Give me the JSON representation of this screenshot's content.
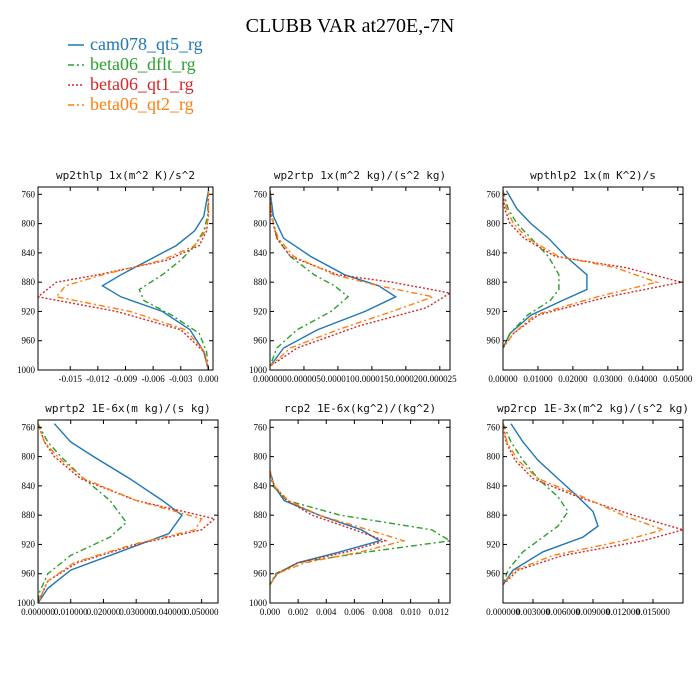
{
  "title": "CLUBB VAR at270E,-7N",
  "legend": [
    {
      "name": "cam078_qt5_rg",
      "color": "#1f77b4",
      "dash": "solid"
    },
    {
      "name": "beta06_dflt_rg",
      "color": "#2ca02c",
      "dash": "dashdot"
    },
    {
      "name": "beta06_qt1_rg",
      "color": "#d62728",
      "dash": "dot"
    },
    {
      "name": "beta06_qt2_rg",
      "color": "#ff7f0e",
      "dash": "dashdot"
    }
  ],
  "chart_data": [
    {
      "type": "line",
      "title": "wp2thlp  1x(m^2 K)/s^2",
      "ylim": [
        1000,
        750
      ],
      "yticks": [
        760,
        800,
        840,
        880,
        920,
        960,
        1000
      ],
      "xlim": [
        -0.0185,
        0.0005
      ],
      "xticks": [
        -0.015,
        -0.012,
        -0.009,
        -0.006,
        -0.003,
        0.0
      ],
      "xticklabels": [
        "-0.015",
        "-0.012",
        "-0.009",
        "-0.006",
        "-0.003",
        "0.000"
      ],
      "series": [
        {
          "name": "cam078_qt5_rg",
          "y": [
            755,
            790,
            810,
            830,
            850,
            870,
            885,
            900,
            920,
            945,
            975,
            1000
          ],
          "values": [
            0.0,
            -0.0005,
            -0.0015,
            -0.0035,
            -0.0065,
            -0.0095,
            -0.0115,
            -0.0095,
            -0.005,
            -0.002,
            -0.0005,
            0.0
          ]
        },
        {
          "name": "beta06_dflt_rg",
          "y": [
            755,
            790,
            810,
            830,
            850,
            870,
            890,
            905,
            925,
            950,
            975,
            1000
          ],
          "values": [
            0.0,
            -0.0001,
            -0.0005,
            -0.0015,
            -0.003,
            -0.005,
            -0.0075,
            -0.007,
            -0.004,
            -0.001,
            -0.0002,
            0.0
          ]
        },
        {
          "name": "beta06_qt1_rg",
          "y": [
            755,
            790,
            810,
            830,
            850,
            870,
            880,
            900,
            920,
            945,
            975,
            1000
          ],
          "values": [
            0.0,
            0.0,
            -0.0002,
            -0.001,
            -0.0045,
            -0.012,
            -0.0165,
            -0.0185,
            -0.01,
            -0.003,
            -0.0005,
            0.0
          ]
        },
        {
          "name": "beta06_qt2_rg",
          "y": [
            755,
            790,
            810,
            830,
            850,
            870,
            885,
            900,
            920,
            945,
            975,
            1000
          ],
          "values": [
            0.0,
            0.0,
            -0.0003,
            -0.0015,
            -0.005,
            -0.0115,
            -0.0155,
            -0.0165,
            -0.0085,
            -0.0025,
            -0.0004,
            0.0
          ]
        }
      ]
    },
    {
      "type": "line",
      "title": "wp2rtp  1x(m^2 kg)/(s^2 kg)",
      "ylim": [
        1000,
        750
      ],
      "yticks": [
        760,
        800,
        840,
        880,
        920,
        960,
        1000
      ],
      "xlim": [
        0.0,
        2.65e-05
      ],
      "xticks": [
        0.0,
        5e-06,
        1e-05,
        1.5e-05,
        2e-05,
        2.5e-05
      ],
      "xticklabels": [
        "0.000000",
        "0.000005",
        "0.000010",
        "0.000015",
        "0.000020",
        "0.000025"
      ],
      "series": [
        {
          "name": "cam078_qt5_rg",
          "y": [
            755,
            790,
            820,
            845,
            870,
            885,
            900,
            920,
            945,
            970,
            995
          ],
          "values": [
            0.0,
            5e-07,
            2e-06,
            6e-06,
            1.1e-05,
            1.6e-05,
            1.85e-05,
            1.4e-05,
            7e-06,
            2e-06,
            0.0
          ]
        },
        {
          "name": "beta06_dflt_rg",
          "y": [
            755,
            790,
            820,
            845,
            870,
            885,
            900,
            920,
            945,
            970,
            995
          ],
          "values": [
            0.0,
            3e-07,
            1e-06,
            3e-06,
            6.5e-06,
            9.5e-06,
            1.15e-05,
            9e-06,
            4e-06,
            1e-06,
            0.0
          ]
        },
        {
          "name": "beta06_qt1_rg",
          "y": [
            755,
            790,
            820,
            845,
            870,
            880,
            895,
            915,
            940,
            970,
            995
          ],
          "values": [
            0.0,
            2e-07,
            1e-06,
            3e-06,
            1e-05,
            1.8e-05,
            2.65e-05,
            2.3e-05,
            1.3e-05,
            4e-06,
            0.0
          ]
        },
        {
          "name": "beta06_qt2_rg",
          "y": [
            755,
            790,
            820,
            845,
            870,
            885,
            900,
            920,
            945,
            970,
            995
          ],
          "values": [
            0.0,
            2e-07,
            1.2e-06,
            3.5e-06,
            9.5e-06,
            1.6e-05,
            2.4e-05,
            1.8e-05,
            1e-05,
            3e-06,
            0.0
          ]
        }
      ]
    },
    {
      "type": "line",
      "title": "wpthlp2  1x(m K^2)/s",
      "ylim": [
        1000,
        750
      ],
      "yticks": [
        760,
        800,
        840,
        880,
        920,
        960
      ],
      "xlim": [
        0.0,
        0.0515
      ],
      "xticks": [
        0.0,
        0.01,
        0.02,
        0.03,
        0.04,
        0.05
      ],
      "xticklabels": [
        "0.00000",
        "0.01000",
        "0.02000",
        "0.03000",
        "0.04000",
        "0.05000"
      ],
      "series": [
        {
          "name": "cam078_qt5_rg",
          "y": [
            755,
            780,
            800,
            820,
            845,
            870,
            890,
            905,
            925,
            950,
            970
          ],
          "values": [
            0.001,
            0.004,
            0.008,
            0.013,
            0.018,
            0.024,
            0.024,
            0.017,
            0.008,
            0.002,
            0.0
          ]
        },
        {
          "name": "beta06_dflt_rg",
          "y": [
            755,
            780,
            800,
            820,
            845,
            870,
            890,
            905,
            925,
            950,
            970
          ],
          "values": [
            0.0,
            0.0015,
            0.004,
            0.008,
            0.013,
            0.016,
            0.016,
            0.0135,
            0.007,
            0.002,
            0.0
          ]
        },
        {
          "name": "beta06_qt1_rg",
          "y": [
            755,
            780,
            800,
            820,
            845,
            860,
            880,
            900,
            925,
            950,
            970
          ],
          "values": [
            0.0,
            0.0005,
            0.002,
            0.006,
            0.015,
            0.035,
            0.051,
            0.03,
            0.01,
            0.003,
            0.0
          ]
        },
        {
          "name": "beta06_qt2_rg",
          "y": [
            755,
            780,
            800,
            820,
            845,
            860,
            880,
            900,
            925,
            950,
            970
          ],
          "values": [
            0.0,
            0.001,
            0.003,
            0.007,
            0.016,
            0.032,
            0.044,
            0.027,
            0.009,
            0.003,
            0.0
          ]
        }
      ]
    },
    {
      "type": "line",
      "title": "wprtp2  1E-6x(m kg)/(s kg)",
      "ylim": [
        1000,
        750
      ],
      "yticks": [
        760,
        800,
        840,
        880,
        920,
        960,
        1000
      ],
      "xlim": [
        0.0,
        0.055
      ],
      "xticks": [
        0.0,
        0.01,
        0.02,
        0.03,
        0.04,
        0.05
      ],
      "xticklabels": [
        "0.000000",
        "0.010000",
        "0.020000",
        "0.030000",
        "0.040000",
        "0.050000"
      ],
      "series": [
        {
          "name": "cam078_qt5_rg",
          "y": [
            755,
            780,
            800,
            830,
            860,
            880,
            905,
            930,
            955,
            980,
            1000
          ],
          "values": [
            0.005,
            0.01,
            0.017,
            0.028,
            0.038,
            0.044,
            0.04,
            0.025,
            0.01,
            0.003,
            0.0
          ]
        },
        {
          "name": "beta06_dflt_rg",
          "y": [
            755,
            780,
            800,
            830,
            860,
            890,
            910,
            935,
            960,
            985,
            1000
          ],
          "values": [
            0.0,
            0.003,
            0.007,
            0.014,
            0.022,
            0.027,
            0.022,
            0.01,
            0.003,
            0.0005,
            0.0
          ]
        },
        {
          "name": "beta06_qt1_rg",
          "y": [
            755,
            780,
            800,
            830,
            860,
            885,
            900,
            920,
            945,
            970,
            1000
          ],
          "values": [
            0.0,
            0.002,
            0.005,
            0.013,
            0.03,
            0.054,
            0.05,
            0.03,
            0.012,
            0.003,
            0.0
          ]
        },
        {
          "name": "beta06_qt2_rg",
          "y": [
            755,
            780,
            800,
            830,
            860,
            885,
            900,
            920,
            945,
            970,
            1000
          ],
          "values": [
            0.0,
            0.002,
            0.006,
            0.014,
            0.03,
            0.05,
            0.048,
            0.029,
            0.011,
            0.003,
            0.0
          ]
        }
      ]
    },
    {
      "type": "line",
      "title": "rcp2  1E-6x(kg^2)/(kg^2)",
      "ylim": [
        1000,
        750
      ],
      "yticks": [
        760,
        800,
        840,
        880,
        920,
        960,
        1000
      ],
      "xlim": [
        0.0,
        0.0128
      ],
      "xticks": [
        0.0,
        0.002,
        0.004,
        0.006,
        0.008,
        0.01,
        0.012
      ],
      "xticklabels": [
        "0.000",
        "0.002",
        "0.004",
        "0.006",
        "0.008",
        "0.010",
        "0.012"
      ],
      "series": [
        {
          "name": "cam078_qt5_rg",
          "y": [
            820,
            840,
            860,
            880,
            900,
            915,
            930,
            945,
            960,
            975
          ],
          "values": [
            0.0,
            0.0003,
            0.001,
            0.0035,
            0.0065,
            0.0078,
            0.005,
            0.002,
            0.0005,
            0.0
          ]
        },
        {
          "name": "beta06_dflt_rg",
          "y": [
            820,
            840,
            860,
            880,
            900,
            915,
            930,
            945,
            960,
            975
          ],
          "values": [
            0.0,
            0.0002,
            0.0012,
            0.005,
            0.0115,
            0.0128,
            0.007,
            0.002,
            0.0004,
            0.0
          ]
        },
        {
          "name": "beta06_qt1_rg",
          "y": [
            820,
            840,
            860,
            880,
            900,
            915,
            930,
            945,
            960,
            975
          ],
          "values": [
            0.0,
            0.0003,
            0.0012,
            0.003,
            0.006,
            0.0082,
            0.0055,
            0.002,
            0.0005,
            0.0
          ]
        },
        {
          "name": "beta06_qt2_rg",
          "y": [
            820,
            840,
            860,
            880,
            900,
            915,
            930,
            945,
            960,
            975
          ],
          "values": [
            0.0,
            0.0003,
            0.0013,
            0.0035,
            0.007,
            0.0095,
            0.0065,
            0.0025,
            0.0005,
            0.0
          ]
        }
      ]
    },
    {
      "type": "line",
      "title": "wp2rcp  1E-3x(m^2 kg)/(s^2 kg)",
      "ylim": [
        1000,
        750
      ],
      "yticks": [
        760,
        800,
        840,
        880,
        920,
        960
      ],
      "xlim": [
        0.0,
        0.018
      ],
      "xticks": [
        0.0,
        0.003,
        0.006,
        0.009,
        0.012,
        0.015
      ],
      "xticklabels": [
        "0.000000",
        "0.003000",
        "0.006000",
        "0.009000",
        "0.012000",
        "0.015000"
      ],
      "series": [
        {
          "name": "cam078_qt5_rg",
          "y": [
            755,
            780,
            805,
            830,
            855,
            875,
            895,
            910,
            930,
            955,
            975
          ],
          "values": [
            0.0008,
            0.002,
            0.0035,
            0.0055,
            0.0075,
            0.009,
            0.0095,
            0.008,
            0.004,
            0.001,
            0.0
          ]
        },
        {
          "name": "beta06_dflt_rg",
          "y": [
            755,
            780,
            805,
            830,
            855,
            875,
            895,
            910,
            930,
            955,
            975
          ],
          "values": [
            0.0,
            0.0008,
            0.002,
            0.0035,
            0.0055,
            0.0065,
            0.0055,
            0.004,
            0.002,
            0.0005,
            0.0
          ]
        },
        {
          "name": "beta06_qt1_rg",
          "y": [
            755,
            780,
            805,
            830,
            855,
            880,
            900,
            915,
            935,
            955,
            975
          ],
          "values": [
            0.0,
            0.0003,
            0.0012,
            0.003,
            0.0075,
            0.013,
            0.018,
            0.014,
            0.006,
            0.0015,
            0.0
          ]
        },
        {
          "name": "beta06_qt2_rg",
          "y": [
            755,
            780,
            805,
            830,
            855,
            880,
            900,
            915,
            935,
            955,
            975
          ],
          "values": [
            0.0,
            0.0004,
            0.0015,
            0.0035,
            0.008,
            0.012,
            0.016,
            0.012,
            0.005,
            0.0012,
            0.0
          ]
        }
      ]
    }
  ]
}
